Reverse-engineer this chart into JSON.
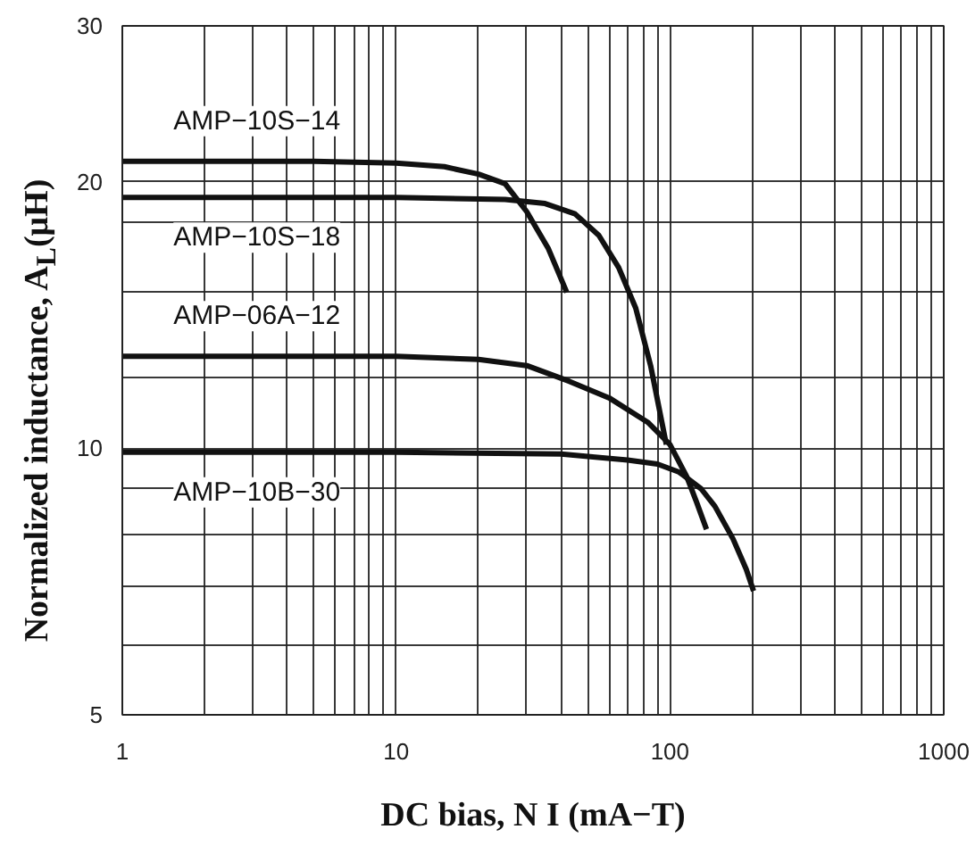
{
  "chart_data": {
    "type": "line",
    "xlabel": "DC bias, N I (mA−T)",
    "ylabel": "Normalized inductance, A$_{L}$(μH)",
    "log": "xy",
    "grid": true,
    "marker": "none",
    "line_style": "solid",
    "xlim": [
      1,
      1000
    ],
    "ylim": [
      5,
      30
    ],
    "xticks": [
      1,
      {
        "value": 2,
        "label": null
      },
      {
        "value": 3,
        "label": null
      },
      {
        "value": 4,
        "label": null
      },
      {
        "value": 5,
        "label": null
      },
      {
        "value": 6,
        "label": null
      },
      {
        "value": 7,
        "label": null
      },
      {
        "value": 8,
        "label": null
      },
      {
        "value": 9,
        "label": null
      },
      10,
      {
        "value": 20,
        "label": null
      },
      {
        "value": 30,
        "label": null
      },
      {
        "value": 40,
        "label": null
      },
      {
        "value": 50,
        "label": null
      },
      {
        "value": 60,
        "label": null
      },
      {
        "value": 70,
        "label": null
      },
      {
        "value": 80,
        "label": null
      },
      {
        "value": 90,
        "label": null
      },
      100,
      {
        "value": 200,
        "label": null
      },
      {
        "value": 300,
        "label": null
      },
      {
        "value": 400,
        "label": null
      },
      {
        "value": 500,
        "label": null
      },
      {
        "value": 600,
        "label": null
      },
      {
        "value": 700,
        "label": null
      },
      {
        "value": 800,
        "label": null
      },
      {
        "value": 900,
        "label": null
      },
      1000
    ],
    "yticks": [
      5,
      {
        "value": 6,
        "label": null
      },
      {
        "value": 7,
        "label": null
      },
      {
        "value": 8,
        "label": null
      },
      {
        "value": 9,
        "label": null
      },
      10,
      {
        "value": 12,
        "label": null
      },
      {
        "value": 15,
        "label": null
      },
      {
        "value": 18,
        "label": null
      },
      20,
      30
    ],
    "series": [
      {
        "name": "AMP−10S−14",
        "color": "#111111",
        "x": [
          1,
          5,
          10,
          15,
          20,
          25,
          30,
          36,
          42
        ],
        "values": [
          21.1,
          21.1,
          21.0,
          20.8,
          20.4,
          19.9,
          18.5,
          16.8,
          15.0
        ]
      },
      {
        "name": "AMP−10S−18",
        "color": "#111111",
        "x": [
          1,
          10,
          25,
          35,
          45,
          55,
          65,
          75,
          85,
          97
        ],
        "values": [
          19.2,
          19.2,
          19.1,
          18.9,
          18.4,
          17.4,
          16.0,
          14.4,
          12.4,
          10.1
        ]
      },
      {
        "name": "AMP−06A−12",
        "color": "#111111",
        "x": [
          1,
          10,
          20,
          30,
          43,
          60,
          83,
          100,
          115,
          125,
          136
        ],
        "values": [
          12.7,
          12.7,
          12.6,
          12.4,
          11.9,
          11.4,
          10.7,
          10.1,
          9.3,
          8.7,
          8.1
        ]
      },
      {
        "name": "AMP−10B−30",
        "color": "#111111",
        "x": [
          1,
          10,
          40,
          70,
          90,
          108,
          130,
          146,
          170,
          190,
          202
        ],
        "values": [
          9.9,
          9.9,
          9.85,
          9.7,
          9.6,
          9.4,
          9.0,
          8.6,
          7.9,
          7.3,
          6.9
        ]
      }
    ]
  }
}
